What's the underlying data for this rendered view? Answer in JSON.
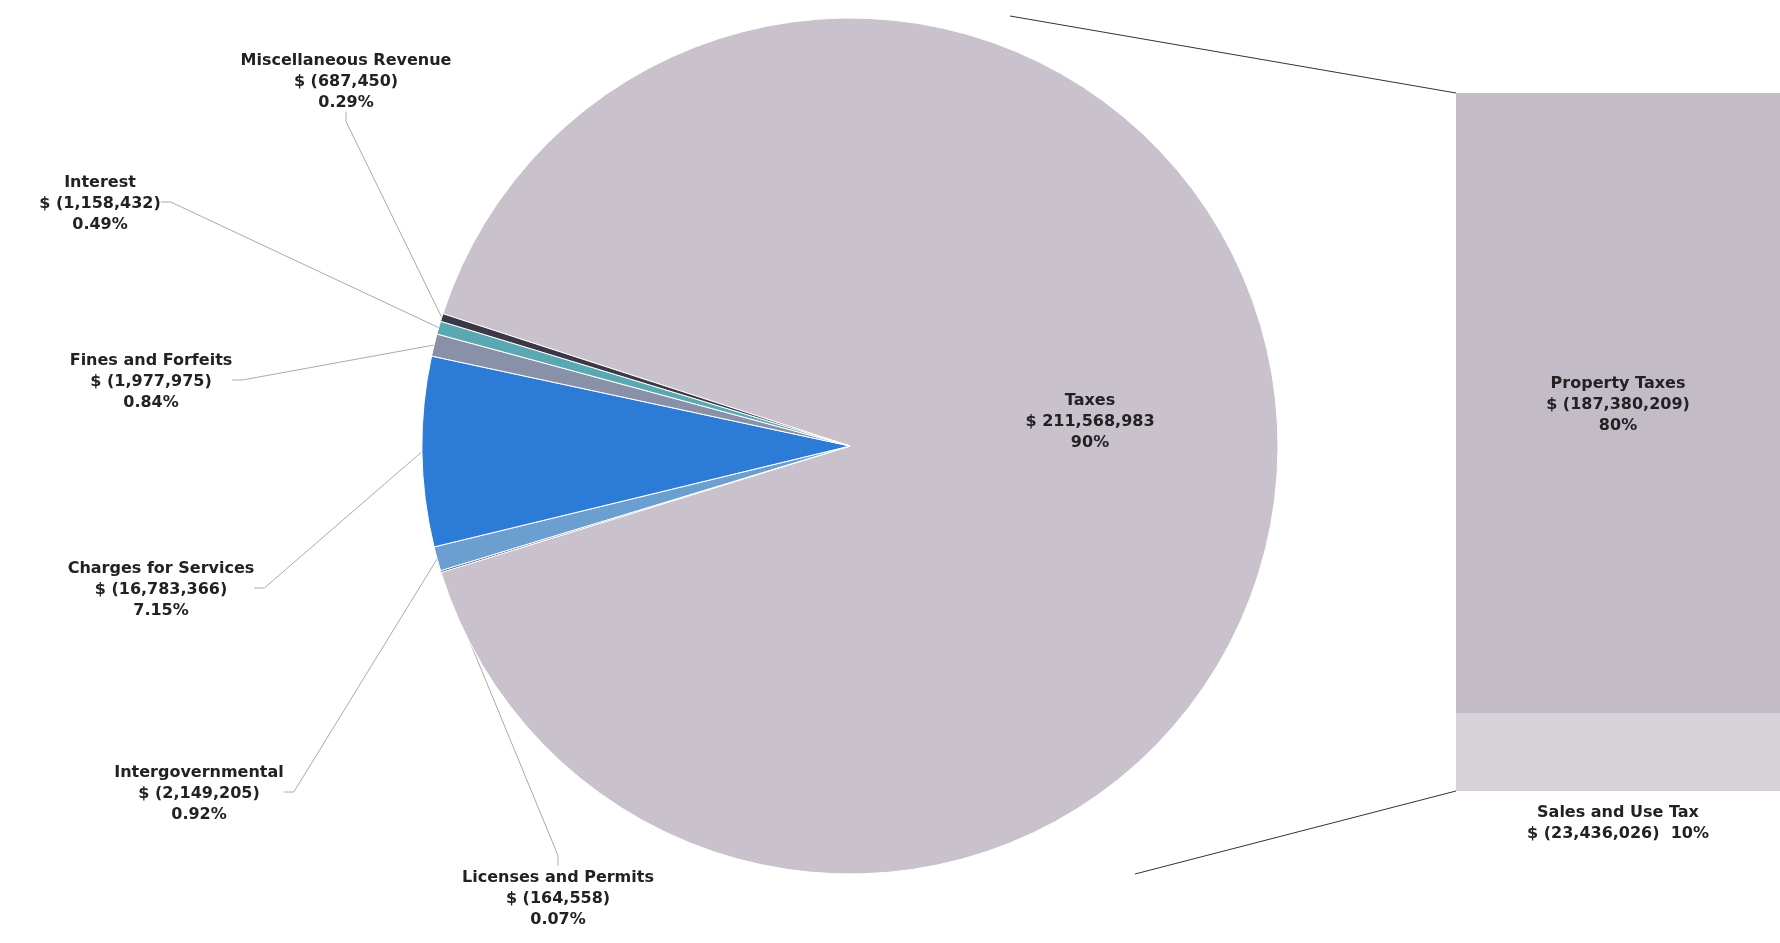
{
  "chart_data": [
    {
      "type": "pie",
      "categories": [
        "Taxes",
        "Licenses and Permits",
        "Intergovernmental",
        "Charges for Services",
        "Fines and Forfeits",
        "Interest",
        "Miscellaneous Revenue"
      ],
      "values": [
        211568983,
        164558,
        2149205,
        16783366,
        1977975,
        1158432,
        687450
      ],
      "value_labels": [
        "$ 211,568,983\n90%",
        "$ (164,558)\n0.07%",
        "$ (2,149,205)\n0.92%",
        "$ (16,783,366)\n7.15%",
        "$ (1,977,975)\n0.84%",
        "$ (1,158,432)\n0.49%",
        "$ (687,450)\n0.29%"
      ],
      "colors": [
        "#c9c1cb",
        "#3f4f6e",
        "#6a9fd0",
        "#2b7bd7",
        "#8891a8",
        "#5aa9b2",
        "#3b3947"
      ]
    },
    {
      "type": "bar",
      "stacked": true,
      "tick_labels": false,
      "categories": [
        null
      ],
      "series": [
        {
          "name": "Sales and Use Tax",
          "color": "#d6d2d7",
          "values": [
            23436026
          ],
          "value_labels": [
            "$ (23,436,026)  10%"
          ]
        },
        {
          "name": "Property Taxes",
          "color": "#c3bbc6",
          "values": [
            187380209
          ],
          "value_labels": [
            "$ (187,380,209)\n80%"
          ]
        }
      ]
    }
  ]
}
